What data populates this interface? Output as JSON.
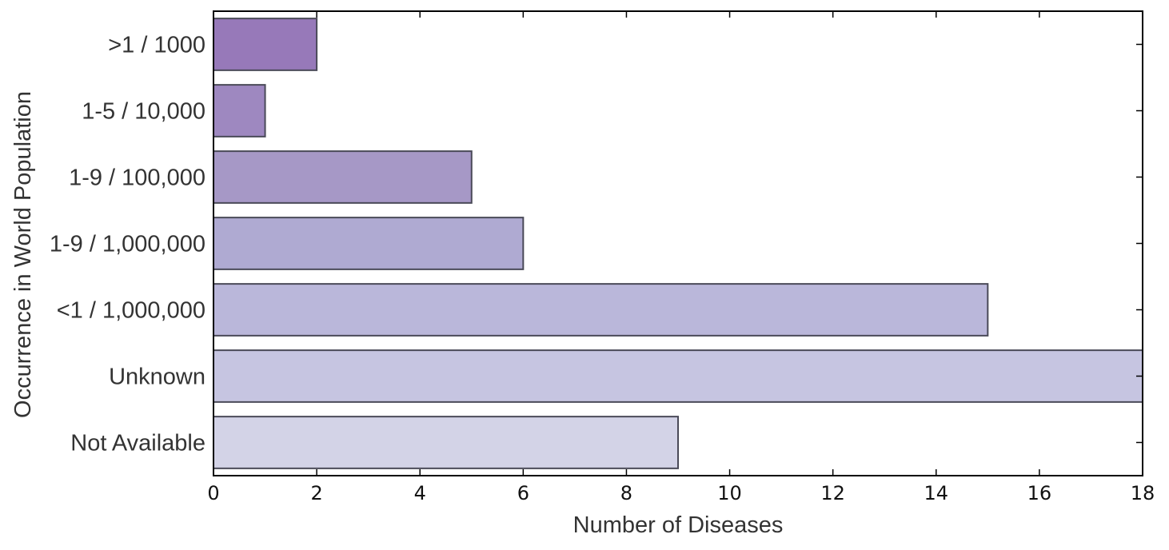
{
  "chart_data": {
    "type": "bar",
    "orientation": "horizontal",
    "title": "",
    "xlabel": "Number of Diseases",
    "ylabel": "Occurrence in World Population",
    "categories": [
      ">1 / 1000",
      "1-5 / 10,000",
      "1-9 / 100,000",
      "1-9 / 1,000,000",
      "<1 / 1,000,000",
      "Unknown",
      "Not Available"
    ],
    "values": [
      2,
      1,
      5,
      6,
      15,
      18,
      9
    ],
    "xlim": [
      0,
      18
    ],
    "xticks": [
      0,
      2,
      4,
      6,
      8,
      10,
      12,
      14,
      16,
      18
    ],
    "grid": false,
    "legend": "none",
    "bar_colors": [
      "#9779b9",
      "#9e88c0",
      "#a698c6",
      "#afaad2",
      "#bab7da",
      "#c6c5e1",
      "#d3d3e7"
    ],
    "bar_edge_color": "#4a4a58"
  }
}
